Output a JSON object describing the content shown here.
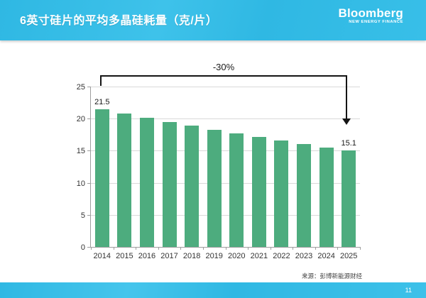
{
  "header": {
    "title": "6英寸硅片的平均多晶硅耗量（克/片）",
    "logo": {
      "brand": "Bloomberg",
      "tagline": "NEW ENERGY FINANCE"
    }
  },
  "chart_data": {
    "type": "bar",
    "title": "6英寸硅片的平均多晶硅耗量（克/片）",
    "categories": [
      "2014",
      "2015",
      "2016",
      "2017",
      "2018",
      "2019",
      "2020",
      "2021",
      "2022",
      "2023",
      "2024",
      "2025"
    ],
    "values": [
      21.5,
      20.8,
      20.1,
      19.5,
      18.9,
      18.3,
      17.7,
      17.1,
      16.6,
      16.0,
      15.5,
      15.1
    ],
    "xlabel": "",
    "ylabel": "",
    "ylim": [
      0,
      25
    ],
    "ytick_step": 5,
    "grid": true,
    "legend_position": "none",
    "bar_color": "#4dac7e",
    "labeled_points": [
      {
        "index": 0,
        "label": "21.5"
      },
      {
        "index": 11,
        "label": "15.1"
      }
    ],
    "annotation": {
      "label": "-30%",
      "from_category": "2014",
      "to_category": "2025"
    }
  },
  "footer": {
    "source": "来源：彭博新能源财经",
    "page_number": "11"
  },
  "colors": {
    "accent_cyan": "#2fb8e3",
    "bar_green": "#4dac7e",
    "gridline": "#d9d9d9",
    "axis": "#9e9e9e",
    "arrow_black": "#141414"
  }
}
